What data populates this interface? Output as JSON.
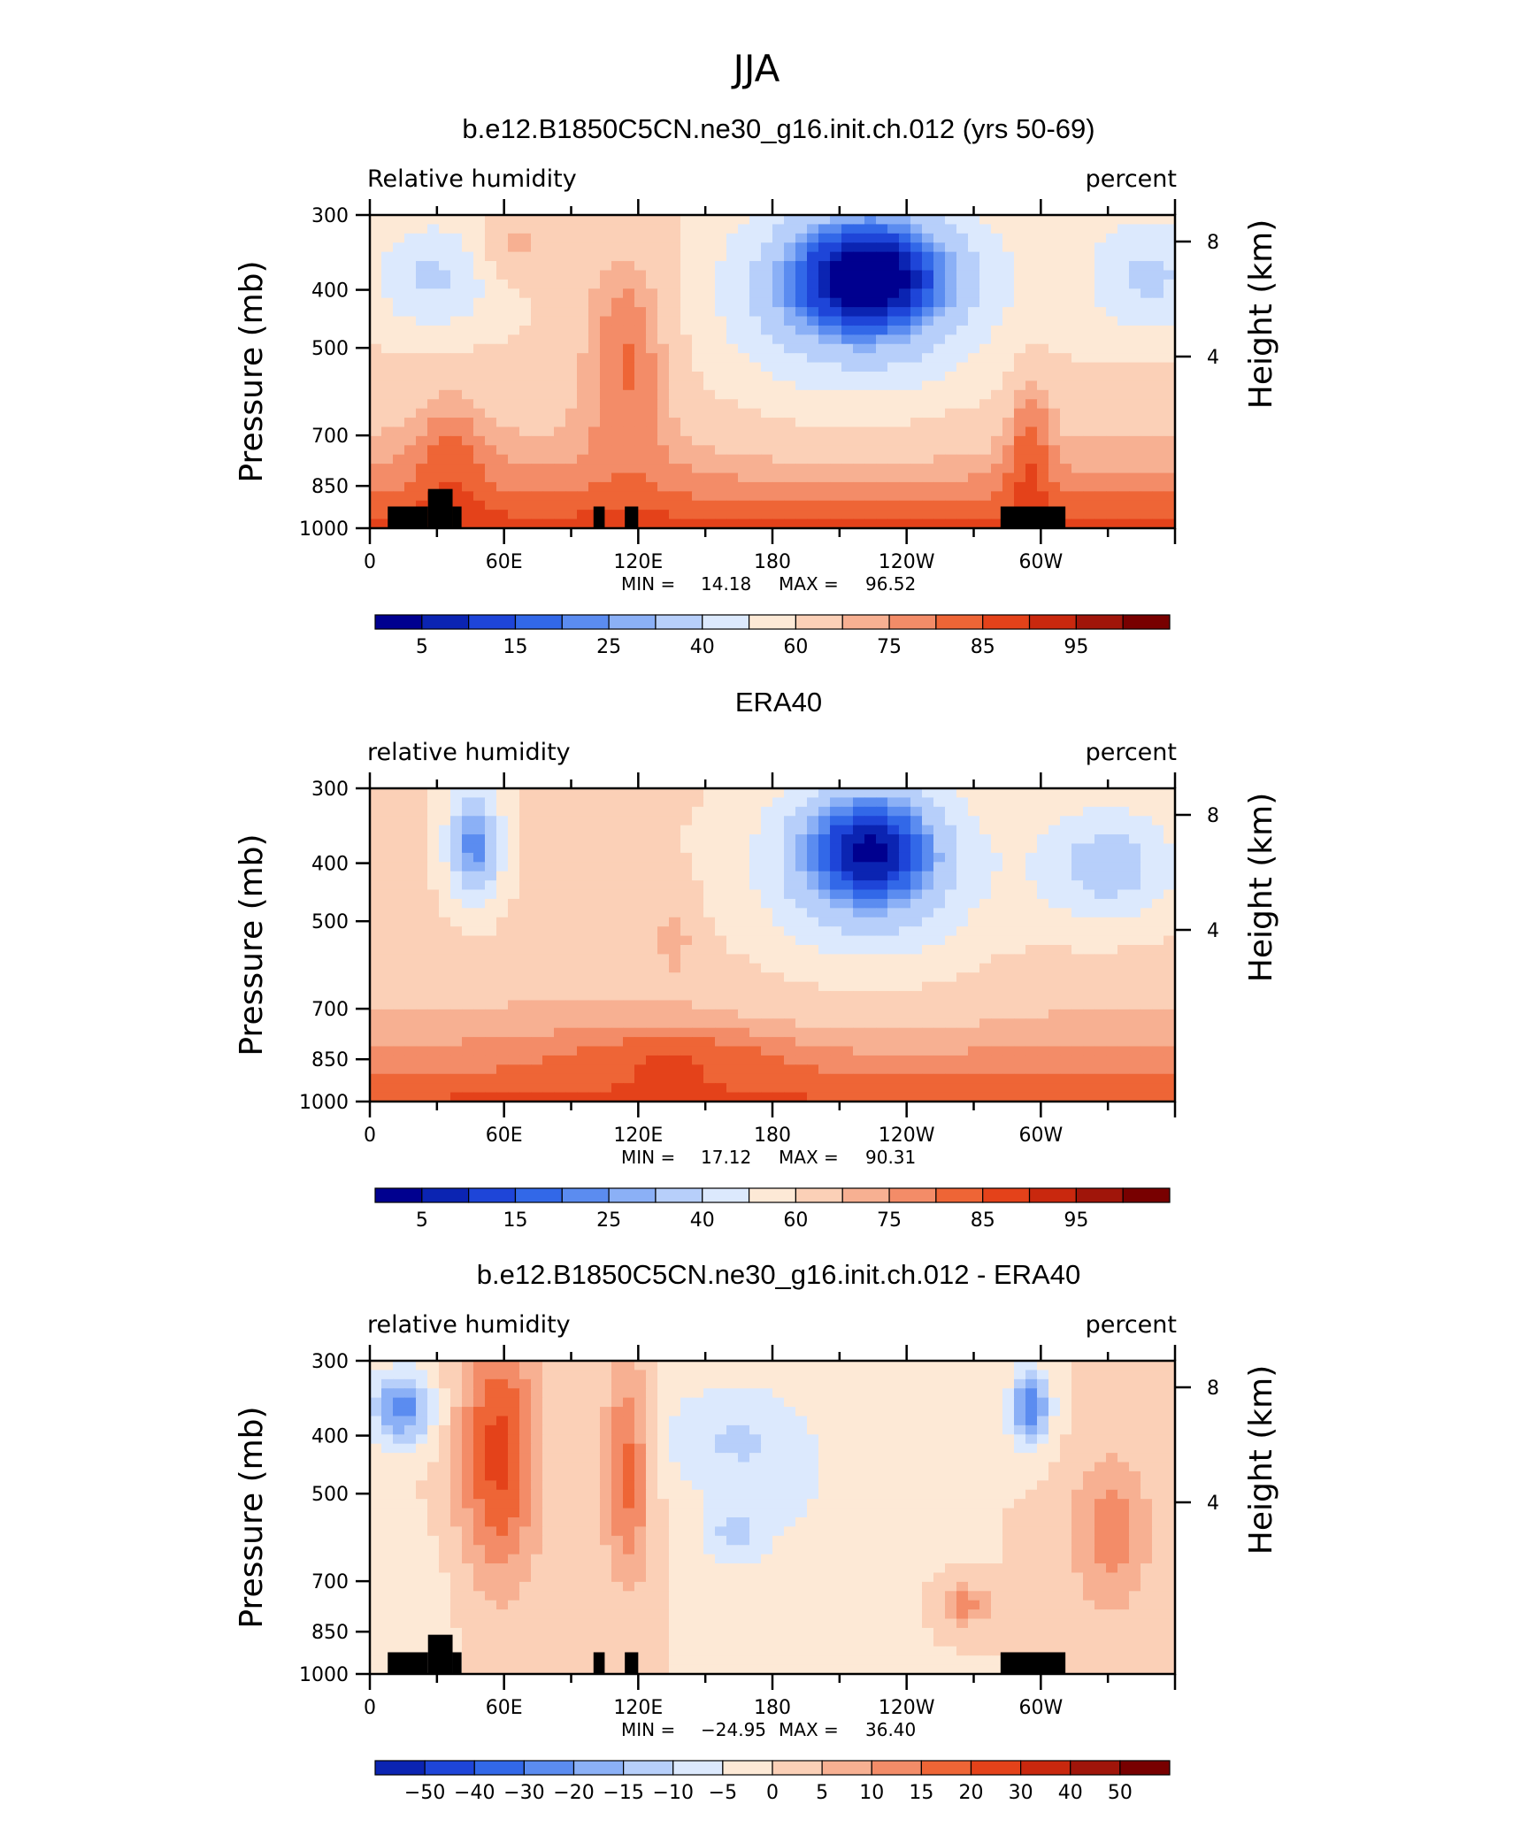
{
  "figure": {
    "title": "JJA"
  },
  "colors": {
    "ramp": [
      "#00008f",
      "#0b24b2",
      "#1e45d8",
      "#3268e8",
      "#5b8cf0",
      "#8bb0f6",
      "#b7cffa",
      "#dce9fd",
      "#fde9d6",
      "#fbd0b7",
      "#f7b092",
      "#f38c68",
      "#ee6536",
      "#e4421a",
      "#c9280e",
      "#a0150a",
      "#780000"
    ],
    "land": "#000000"
  },
  "chart_data": [
    {
      "type": "contour",
      "title": "b.e12.B1850C5CN.ne30_g16.init.ch.012 (yrs 50-69)",
      "left_label": "Relative humidity",
      "right_label": "percent",
      "ylabel": "Pressure (mb)",
      "y2label": "Height (km)",
      "x_ticks": [
        "0",
        "60E",
        "120E",
        "180",
        "120W",
        "60W"
      ],
      "y_ticks": [
        "300",
        "400",
        "500",
        "700",
        "850",
        "1000"
      ],
      "y2_ticks": [
        "8",
        "4"
      ],
      "stat_min_label": "MIN =",
      "stat_min": "14.18",
      "stat_max_label": "MAX =",
      "stat_max": "96.52",
      "levels": [
        5,
        10,
        15,
        20,
        25,
        30,
        40,
        50,
        60,
        70,
        75,
        80,
        85,
        90,
        95,
        100
      ],
      "colorbar_labels": [
        "5",
        "15",
        "25",
        "40",
        "60",
        "75",
        "85",
        "95"
      ]
    },
    {
      "type": "contour",
      "title": "ERA40",
      "left_label": "relative humidity",
      "right_label": "percent",
      "ylabel": "Pressure (mb)",
      "y2label": "Height (km)",
      "x_ticks": [
        "0",
        "60E",
        "120E",
        "180",
        "120W",
        "60W"
      ],
      "y_ticks": [
        "300",
        "400",
        "500",
        "700",
        "850",
        "1000"
      ],
      "y2_ticks": [
        "8",
        "4"
      ],
      "stat_min_label": "MIN =",
      "stat_min": "17.12",
      "stat_max_label": "MAX =",
      "stat_max": "90.31",
      "levels": [
        5,
        10,
        15,
        20,
        25,
        30,
        40,
        50,
        60,
        70,
        75,
        80,
        85,
        90,
        95,
        100
      ],
      "colorbar_labels": [
        "5",
        "15",
        "25",
        "40",
        "60",
        "75",
        "85",
        "95"
      ]
    },
    {
      "type": "contour",
      "title": "b.e12.B1850C5CN.ne30_g16.init.ch.012 - ERA40",
      "left_label": "relative humidity",
      "right_label": "percent",
      "ylabel": "Pressure (mb)",
      "y2label": "Height (km)",
      "x_ticks": [
        "0",
        "60E",
        "120E",
        "180",
        "120W",
        "60W"
      ],
      "y_ticks": [
        "300",
        "400",
        "500",
        "700",
        "850",
        "1000"
      ],
      "y2_ticks": [
        "8",
        "4"
      ],
      "stat_min_label": "MIN =",
      "stat_min": "−24.95",
      "stat_max_label": "MAX =",
      "stat_max": "36.40",
      "levels": [
        -50,
        -40,
        -30,
        -20,
        -15,
        -10,
        -5,
        0,
        5,
        10,
        15,
        20,
        30,
        40,
        50
      ],
      "colorbar_labels": [
        "−50",
        "−40",
        "−30",
        "−20",
        "−15",
        "−10",
        "−5",
        "0",
        "5",
        "10",
        "15",
        "20",
        "30",
        "40",
        "50"
      ]
    }
  ]
}
